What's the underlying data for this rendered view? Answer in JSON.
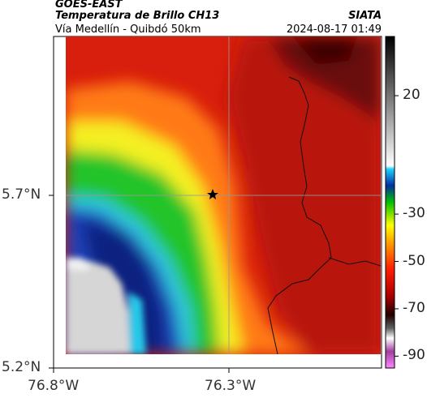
{
  "header": {
    "title": "GOES-EAST",
    "product": "Temperatura de Brillo CH13",
    "region": "Vía Medellín - Quibdó 50km",
    "source": "SIATA",
    "datetime": "2024-08-17 01:49"
  },
  "axes": {
    "lat_labels": [
      "5.7°N",
      "5.2°N"
    ],
    "lon_labels": [
      "76.8°W",
      "76.3°W"
    ]
  },
  "colorbar": {
    "labels": [
      "20",
      "-30",
      "-50",
      "-70",
      "-90"
    ],
    "ticks": [
      20,
      -30,
      -50,
      -70,
      -90
    ],
    "range": [
      -95,
      45
    ]
  },
  "map": {
    "marker": "star-icon",
    "colors": {
      "clear_ground": "#d8d8d8",
      "cyan": "#38d0e8",
      "blue": "#1a3fb0",
      "dark_blue": "#0b1f7a",
      "green": "#20c830",
      "yellow": "#f2f21a",
      "orange": "#ff8a1a",
      "red": "#e8240f",
      "dark_red": "#b8140a",
      "maroon": "#4a0808"
    }
  }
}
